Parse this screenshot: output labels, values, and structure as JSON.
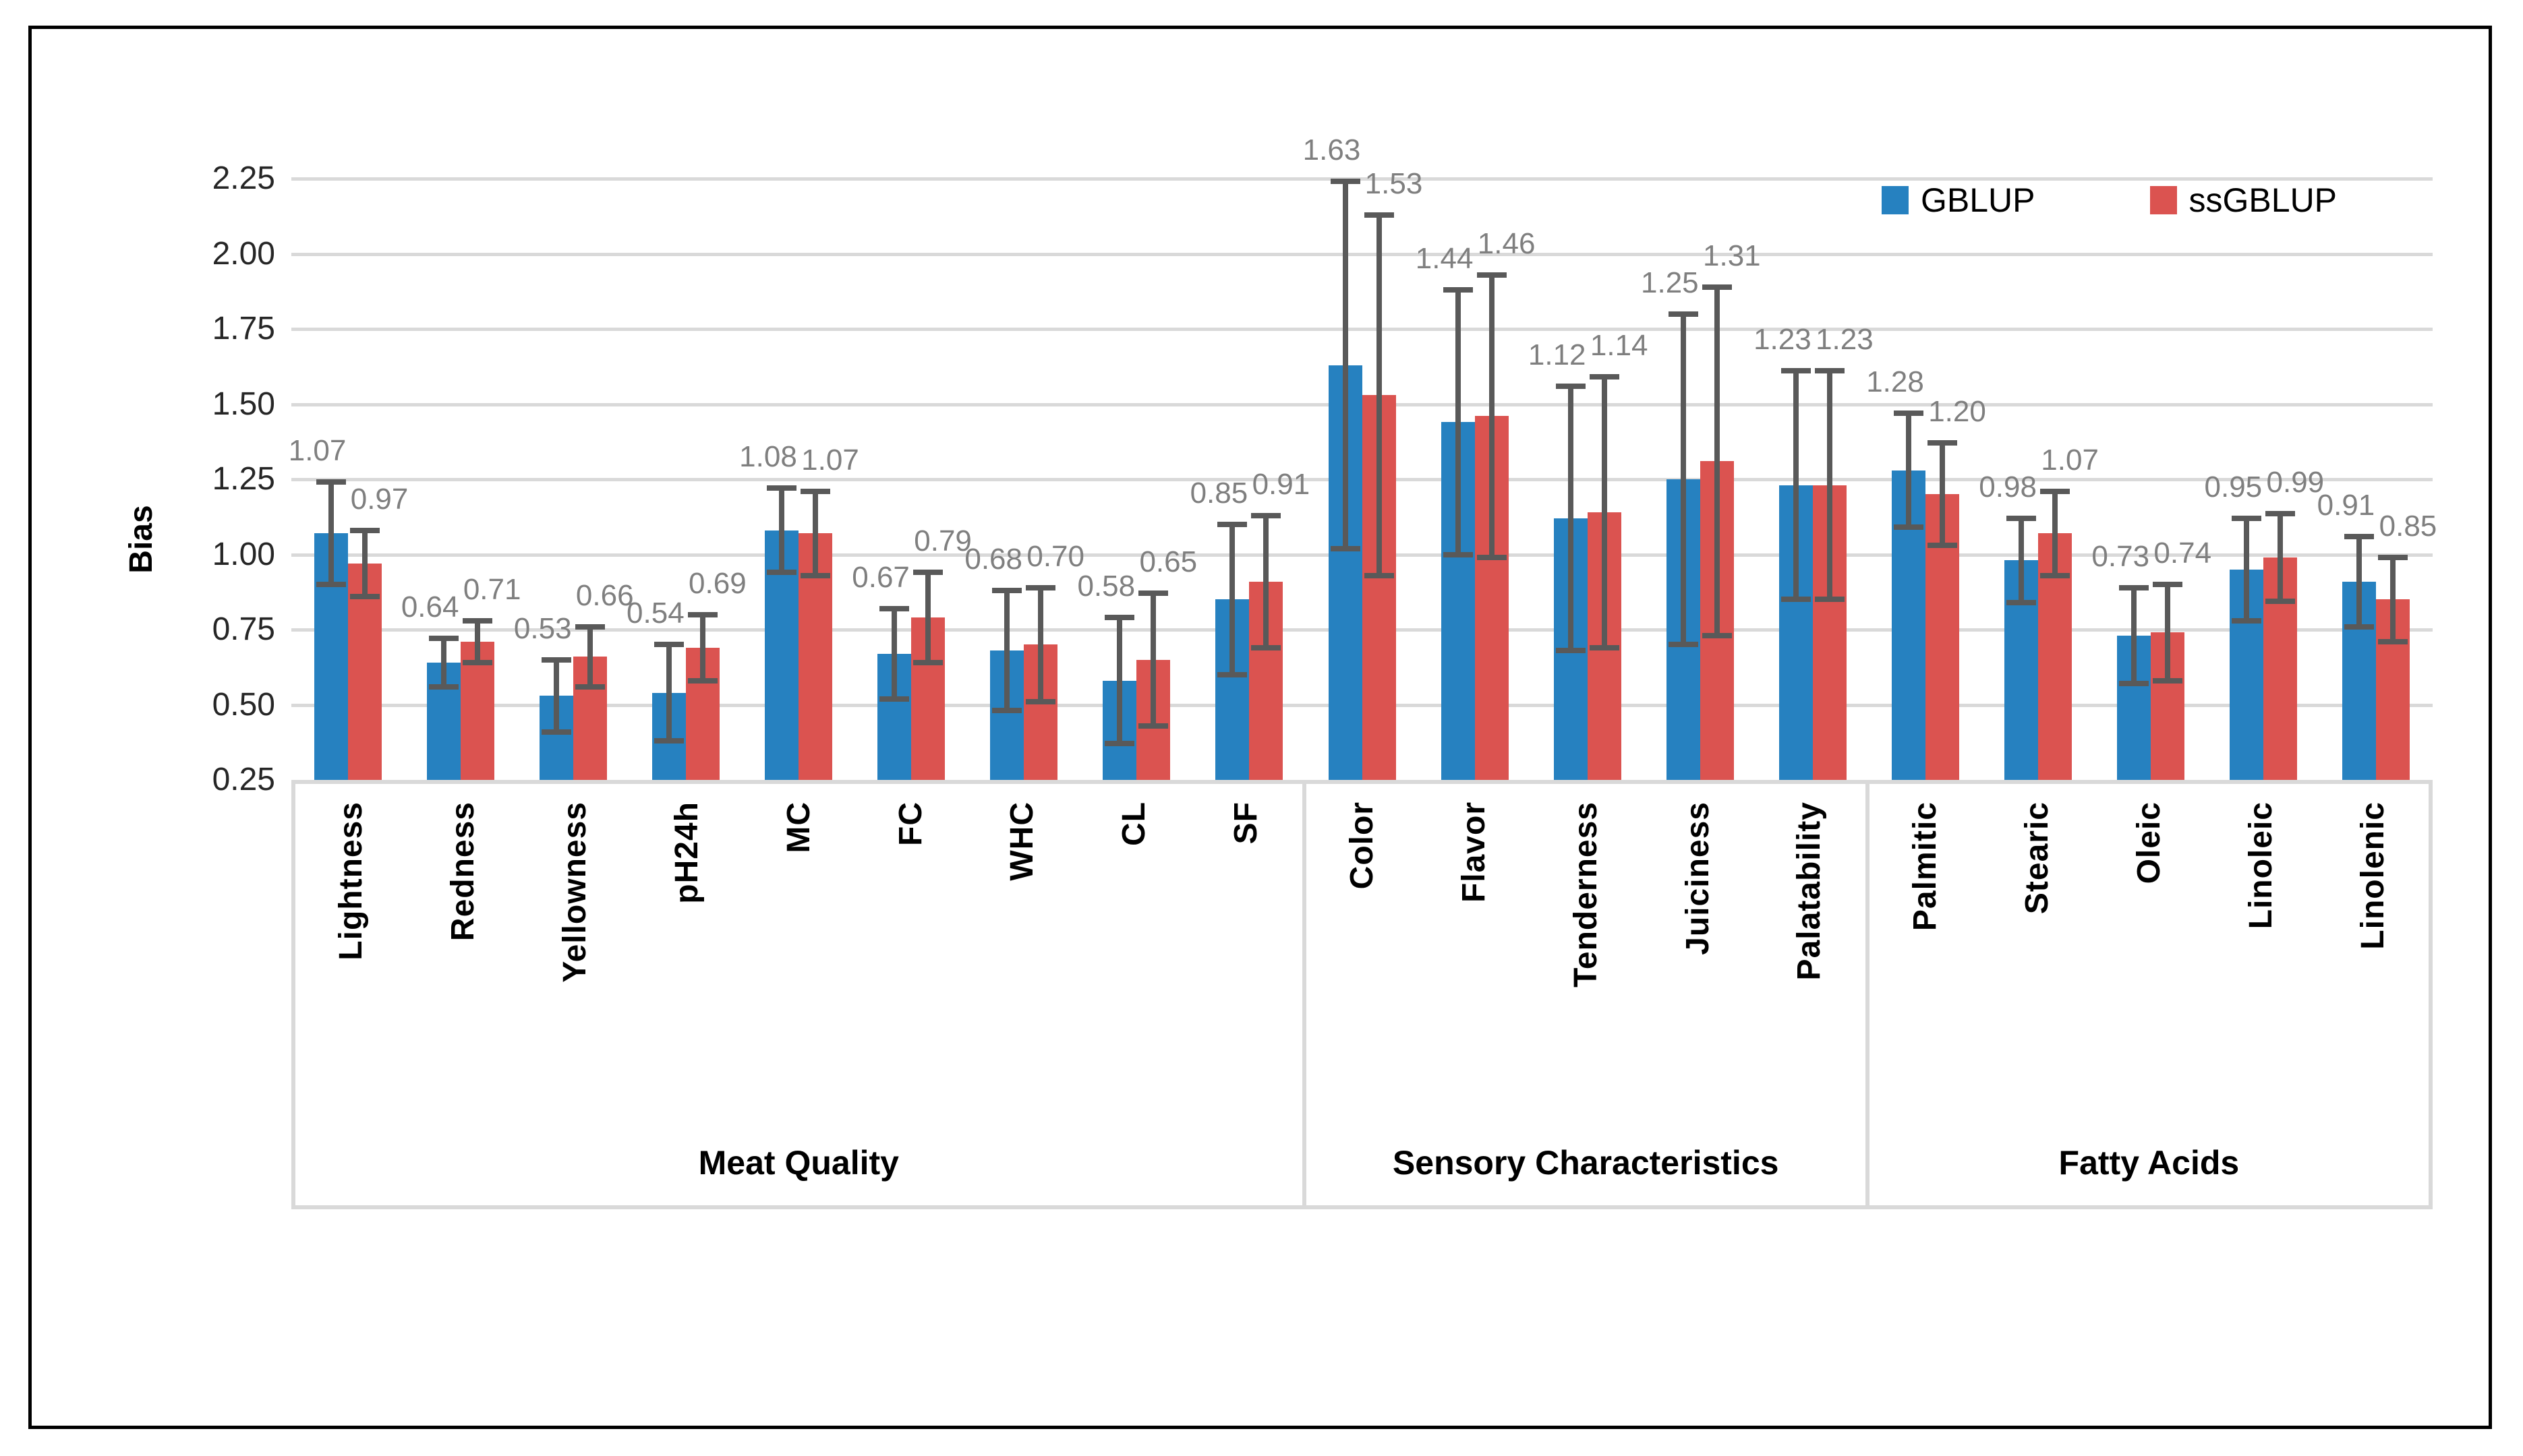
{
  "figure": {
    "background": "#FFFFFF",
    "border_color": "#000000",
    "axis_text_color": "#262626"
  },
  "chart_data": {
    "type": "bar",
    "title": "",
    "xlabel": "",
    "ylabel": "Bias",
    "ylim": [
      0.25,
      2.25
    ],
    "ytick_step": 0.25,
    "ytick_labels": [
      "0.25",
      "0.50",
      "0.75",
      "1.00",
      "1.25",
      "1.50",
      "1.75",
      "2.00",
      "2.25"
    ],
    "grid": true,
    "gridline_color": "#D9D9D9",
    "error_bar_color": "#595959",
    "data_label_color": "#7F7F7F",
    "legend_position": "top-right",
    "groups": [
      {
        "label": "Meat Quality",
        "categories": [
          "Lightness",
          "Redness",
          "Yellowness",
          "pH24h",
          "MC",
          "FC",
          "WHC",
          "CL",
          "SF"
        ]
      },
      {
        "label": "Sensory Characteristics",
        "categories": [
          "Color",
          "Flavor",
          "Tenderness",
          "Juiciness",
          "Palatability"
        ]
      },
      {
        "label": "Fatty Acids",
        "categories": [
          "Palmitic",
          "Stearic",
          "Oleic",
          "Linoleic",
          "Linolenic"
        ]
      }
    ],
    "series": [
      {
        "name": "GBLUP",
        "color": "#2681C0",
        "values": [
          1.07,
          0.64,
          0.53,
          0.54,
          1.08,
          0.67,
          0.68,
          0.58,
          0.85,
          1.63,
          1.44,
          1.12,
          1.25,
          1.23,
          1.28,
          0.98,
          0.73,
          0.95,
          0.91
        ],
        "errors": [
          0.17,
          0.08,
          0.12,
          0.16,
          0.14,
          0.15,
          0.2,
          0.21,
          0.25,
          0.61,
          0.44,
          0.44,
          0.55,
          0.38,
          0.19,
          0.14,
          0.16,
          0.17,
          0.15
        ]
      },
      {
        "name": "ssGBLUP",
        "color": "#DB5350",
        "values": [
          0.97,
          0.71,
          0.66,
          0.69,
          1.07,
          0.79,
          0.7,
          0.65,
          0.91,
          1.53,
          1.46,
          1.14,
          1.31,
          1.23,
          1.2,
          1.07,
          0.74,
          0.99,
          0.85
        ],
        "errors": [
          0.11,
          0.07,
          0.1,
          0.11,
          0.14,
          0.15,
          0.19,
          0.22,
          0.22,
          0.6,
          0.47,
          0.45,
          0.58,
          0.38,
          0.17,
          0.14,
          0.16,
          0.145,
          0.14
        ]
      }
    ]
  }
}
